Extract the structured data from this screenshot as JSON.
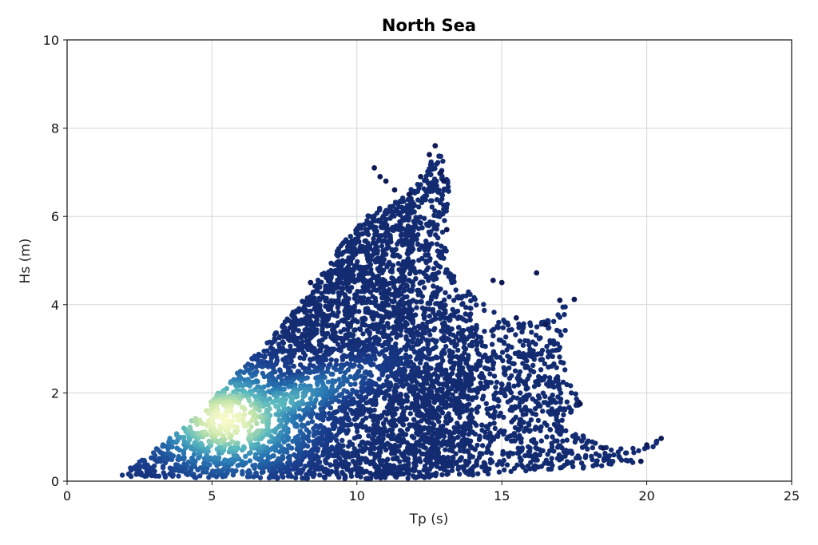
{
  "chart_data": {
    "type": "scatter",
    "title": "North Sea",
    "xlabel": "Tp (s)",
    "ylabel": "Hs (m)",
    "xlim": [
      0,
      25
    ],
    "ylim": [
      0,
      10
    ],
    "xticks": [
      "0",
      "5",
      "10",
      "15",
      "20",
      "25"
    ],
    "yticks": [
      "0",
      "2",
      "4",
      "6",
      "8",
      "10"
    ],
    "grid": true,
    "colormap": "density (dark navy to pale yellow)",
    "colors": {
      "low_density": "#0d1a55",
      "mid_density": "#2a6fb0",
      "high_density": "#f4f7c4"
    },
    "density_peak": {
      "x": 5.5,
      "y": 1.4
    },
    "envelope": [
      [
        1.8,
        0.15
      ],
      [
        2.5,
        0.45
      ],
      [
        3.5,
        0.95
      ],
      [
        4.5,
        1.5
      ],
      [
        5.5,
        2.2
      ],
      [
        6.5,
        2.9
      ],
      [
        7.5,
        3.6
      ],
      [
        8.5,
        4.4
      ],
      [
        9.5,
        5.4
      ],
      [
        10.5,
        6.1
      ],
      [
        11.5,
        6.4
      ],
      [
        12.3,
        6.9
      ],
      [
        12.8,
        7.6
      ],
      [
        13.2,
        6.8
      ],
      [
        13.0,
        5.5
      ],
      [
        13.4,
        4.5
      ],
      [
        14.2,
        4.2
      ],
      [
        15.0,
        3.7
      ],
      [
        16.0,
        3.6
      ],
      [
        17.5,
        4.1
      ],
      [
        17.0,
        2.9
      ],
      [
        17.5,
        2.1
      ],
      [
        17.7,
        1.75
      ],
      [
        17.0,
        1.3
      ],
      [
        18.5,
        0.8
      ],
      [
        20.0,
        0.8
      ],
      [
        20.5,
        0.97
      ],
      [
        20.0,
        0.45
      ],
      [
        18.0,
        0.3
      ],
      [
        12.0,
        0.05
      ],
      [
        2.0,
        0.08
      ]
    ],
    "outlier_points": [
      [
        20.5,
        0.97
      ],
      [
        20.0,
        0.82
      ],
      [
        19.8,
        0.45
      ],
      [
        18.5,
        0.75
      ],
      [
        17.7,
        1.75
      ],
      [
        17.5,
        4.12
      ],
      [
        17.0,
        4.1
      ],
      [
        16.5,
        3.55
      ],
      [
        16.2,
        4.72
      ],
      [
        15.5,
        3.7
      ],
      [
        15.0,
        4.5
      ],
      [
        14.7,
        4.55
      ],
      [
        13.1,
        5.7
      ],
      [
        12.7,
        7.6
      ],
      [
        12.5,
        7.4
      ],
      [
        11.8,
        6.5
      ],
      [
        11.3,
        6.6
      ],
      [
        10.6,
        7.1
      ],
      [
        13.0,
        6.8
      ],
      [
        12.9,
        7.0
      ],
      [
        11.0,
        6.8
      ],
      [
        10.8,
        6.9
      ],
      [
        12.2,
        6.9
      ],
      [
        8.4,
        4.5
      ]
    ]
  }
}
